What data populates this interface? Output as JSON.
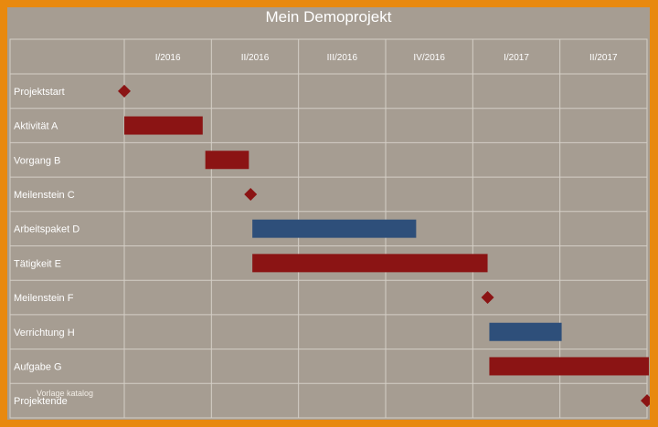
{
  "title": "Mein Demoprojekt",
  "watermark": "Vorlage katalog",
  "chart_data": {
    "type": "gantt",
    "periods": [
      "I/2016",
      "II/2016",
      "III/2016",
      "IV/2016",
      "I/2017",
      "II/2017"
    ],
    "tasks": [
      {
        "name": "Projektstart",
        "kind": "milestone",
        "start": 0.0
      },
      {
        "name": "Aktivität A",
        "kind": "task",
        "color": "#8b1414",
        "start": 0.0,
        "end": 0.9
      },
      {
        "name": "Vorgang B",
        "kind": "task",
        "color": "#8b1414",
        "start": 0.93,
        "end": 1.43
      },
      {
        "name": "Meilenstein C",
        "kind": "milestone",
        "start": 1.45
      },
      {
        "name": "Arbeitspaket D",
        "kind": "task",
        "color": "#2e4f7a",
        "start": 1.47,
        "end": 3.35
      },
      {
        "name": "Tätigkeit E",
        "kind": "task",
        "color": "#8b1414",
        "start": 1.47,
        "end": 4.17
      },
      {
        "name": "Meilenstein F",
        "kind": "milestone",
        "start": 4.17
      },
      {
        "name": "Verrichtung H",
        "kind": "task",
        "color": "#2e4f7a",
        "start": 4.19,
        "end": 5.02
      },
      {
        "name": "Aufgabe G",
        "kind": "task",
        "color": "#8b1414",
        "start": 4.19,
        "end": 6.1
      },
      {
        "name": "Projektende",
        "kind": "milestone",
        "start": 6.1
      }
    ],
    "milestone_color": "#8b1414",
    "grid": true
  }
}
